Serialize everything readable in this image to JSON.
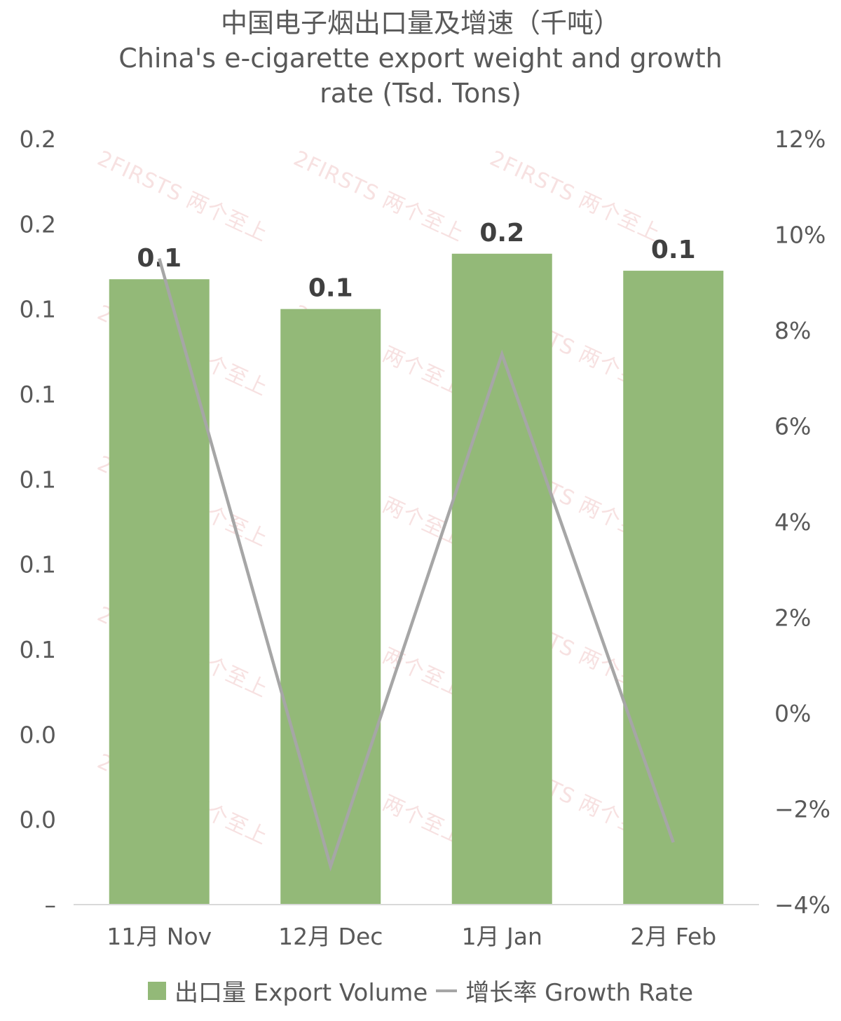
{
  "chart_data": {
    "type": "bar",
    "title": "中国电子烟出口量及增速（千吨）",
    "subtitle_line1": "China's e-cigarette export weight and growth",
    "subtitle_line2": "rate (Tsd. Tons)",
    "categories": [
      "11月 Nov",
      "12月 Dec",
      "1月 Jan",
      "2月 Feb"
    ],
    "series": [
      {
        "name": "出口量 Export Volume",
        "type": "bar",
        "axis": "left",
        "values": [
          0.147,
          0.14,
          0.153,
          0.149
        ],
        "labels": [
          "0.1",
          "0.1",
          "0.2",
          "0.1"
        ],
        "color": "#93b978"
      },
      {
        "name": "增长率 Growth Rate",
        "type": "line",
        "axis": "right",
        "values": [
          9.5,
          -3.2,
          7.5,
          -2.7
        ],
        "color": "#a6a6a6"
      }
    ],
    "y_left": {
      "ylim": [
        0,
        0.18
      ],
      "ticks": [
        0,
        0.02,
        0.04,
        0.06,
        0.08,
        0.1,
        0.12,
        0.14,
        0.16,
        0.18
      ],
      "tick_labels": [
        "–",
        "0.0",
        "0.0",
        "0.1",
        "0.1",
        "0.1",
        "0.1",
        "0.1",
        "0.2",
        "0.2"
      ]
    },
    "y_right": {
      "ylim": [
        -4,
        12
      ],
      "ticks": [
        -4,
        -2,
        0,
        2,
        4,
        6,
        8,
        10,
        12
      ],
      "tick_labels": [
        "−4%",
        "−2%",
        "0%",
        "2%",
        "4%",
        "6%",
        "8%",
        "10%",
        "12%"
      ]
    },
    "grid": false,
    "legend_position": "bottom"
  },
  "watermark": {
    "text": "2FIRSTS 两个至上"
  },
  "colors": {
    "bar": "#93b978",
    "line": "#a6a6a6",
    "text": "#595959",
    "axis": "#d9d9d9"
  }
}
